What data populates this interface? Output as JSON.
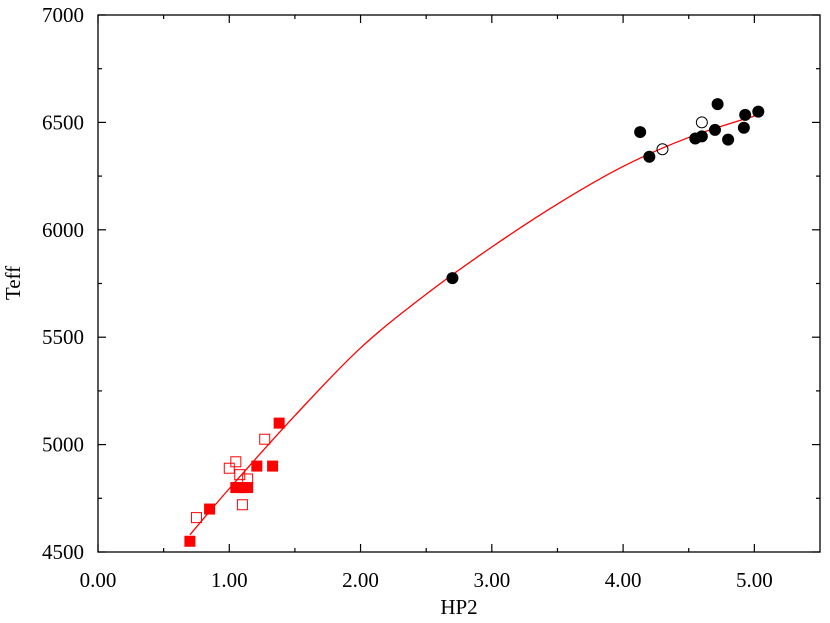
{
  "chart_data": {
    "type": "scatter",
    "title": "",
    "xlabel": "HP2",
    "ylabel": "Teff",
    "xlim": [
      0,
      5.5
    ],
    "ylim": [
      4500,
      7000
    ],
    "xticks": [
      0,
      1,
      2,
      3,
      4,
      5
    ],
    "xtick_labels": [
      "0.00",
      "1.00",
      "2.00",
      "3.00",
      "4.00",
      "5.00"
    ],
    "yticks": [
      4500,
      5000,
      5500,
      6000,
      6500,
      7000
    ],
    "ytick_labels": [
      "4500",
      "5000",
      "5500",
      "6000",
      "6500",
      "7000"
    ],
    "grid": false,
    "legend": "none",
    "colors": {
      "red": "#ff0000",
      "black": "#000000"
    },
    "series": [
      {
        "marker": "filled-square",
        "color": "#ff0000",
        "points": [
          [
            0.7,
            4550
          ],
          [
            0.85,
            4700
          ],
          [
            1.05,
            4800
          ],
          [
            1.08,
            4800
          ],
          [
            1.1,
            4800
          ],
          [
            1.14,
            4800
          ],
          [
            1.21,
            4900
          ],
          [
            1.33,
            4900
          ],
          [
            1.38,
            5100
          ]
        ]
      },
      {
        "marker": "open-square",
        "color": "#ff0000",
        "points": [
          [
            0.75,
            4660
          ],
          [
            1.0,
            4890
          ],
          [
            1.05,
            4920
          ],
          [
            1.08,
            4860
          ],
          [
            1.1,
            4720
          ],
          [
            1.14,
            4840
          ],
          [
            1.27,
            5025
          ]
        ]
      },
      {
        "marker": "filled-circle",
        "color": "#000000",
        "points": [
          [
            2.7,
            5775
          ],
          [
            4.13,
            6455
          ],
          [
            4.2,
            6340
          ],
          [
            4.55,
            6425
          ],
          [
            4.6,
            6435
          ],
          [
            4.7,
            6465
          ],
          [
            4.72,
            6585
          ],
          [
            4.8,
            6420
          ],
          [
            4.92,
            6475
          ],
          [
            4.93,
            6535
          ],
          [
            5.03,
            6550
          ]
        ]
      },
      {
        "marker": "open-circle",
        "color": "#000000",
        "points": [
          [
            4.3,
            6375
          ],
          [
            4.6,
            6500
          ]
        ]
      }
    ],
    "fit_curve": {
      "color": "#ff0000",
      "x": [
        0.7,
        1.0,
        1.5,
        2.0,
        2.5,
        3.0,
        3.5,
        4.0,
        4.5,
        5.0
      ],
      "y": [
        4580,
        4795,
        5135,
        5450,
        5700,
        5920,
        6120,
        6295,
        6430,
        6530
      ]
    }
  }
}
